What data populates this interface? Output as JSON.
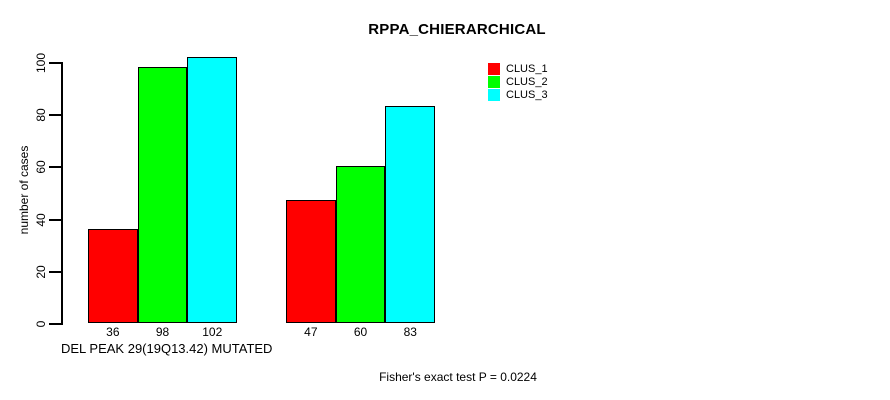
{
  "chart_data": {
    "type": "bar",
    "title": "RPPA_CHIERARCHICAL",
    "ylabel": "number of cases",
    "xlabel": "DEL PEAK 29(19Q13.42) MUTATED",
    "annotation": "Fisher's exact test P = 0.0224",
    "ylim": [
      0,
      100
    ],
    "yticks": [
      0,
      20,
      40,
      60,
      80,
      100
    ],
    "grid": false,
    "legend_position": "top-right",
    "group_count": 2,
    "series": [
      {
        "name": "CLUS_1",
        "color": "#ff0000",
        "values": [
          36,
          47
        ]
      },
      {
        "name": "CLUS_2",
        "color": "#00ff00",
        "values": [
          98,
          60
        ]
      },
      {
        "name": "CLUS_3",
        "color": "#00ffff",
        "values": [
          102,
          83
        ]
      }
    ],
    "bar_value_labels": [
      [
        36,
        98,
        102
      ],
      [
        47,
        60,
        83
      ]
    ]
  },
  "colors": {
    "background": "#ffffff",
    "axis": "#000000",
    "text": "#000000"
  }
}
